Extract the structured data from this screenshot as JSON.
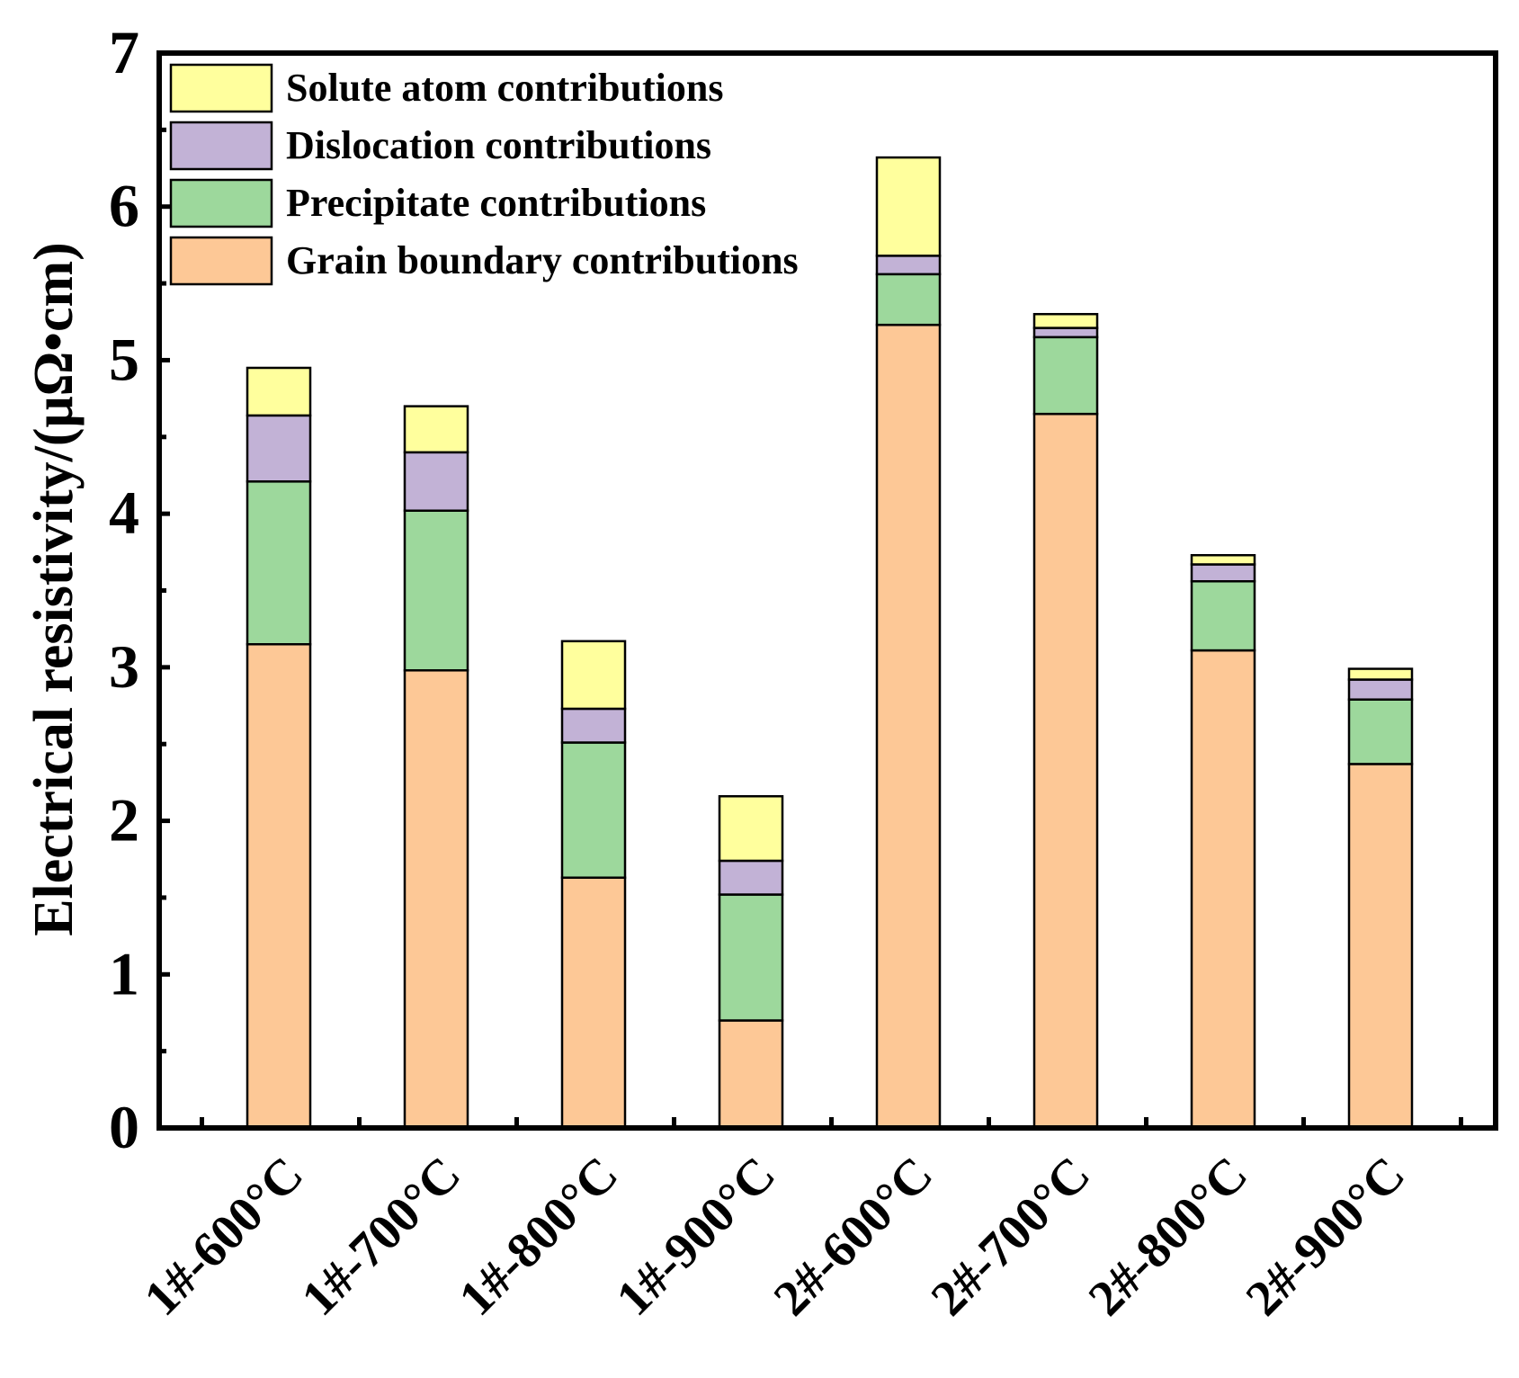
{
  "chart_data": {
    "type": "bar",
    "stacked": true,
    "title": "",
    "xlabel": "",
    "ylabel": "Electrical resistivity/(μΩ•cm)",
    "ylim": [
      0,
      7
    ],
    "yticks": [
      0,
      1,
      2,
      3,
      4,
      5,
      6,
      7
    ],
    "grid": false,
    "legend_position": "top-left",
    "categories": [
      "1#-600°C",
      "1#-700°C",
      "1#-800°C",
      "1#-900°C",
      "2#-600°C",
      "2#-700°C",
      "2#-800°C",
      "2#-900°C"
    ],
    "series": [
      {
        "name": "Grain boundary contributions",
        "color": "#FDC896",
        "values": [
          3.15,
          2.98,
          1.63,
          0.7,
          5.23,
          4.65,
          3.11,
          2.37
        ]
      },
      {
        "name": "Precipitate contributions",
        "color": "#9DD89C",
        "values": [
          1.06,
          1.04,
          0.88,
          0.82,
          0.33,
          0.5,
          0.45,
          0.42
        ]
      },
      {
        "name": "Dislocation contributions",
        "color": "#C2B2D6",
        "values": [
          0.43,
          0.38,
          0.22,
          0.22,
          0.12,
          0.06,
          0.11,
          0.13
        ]
      },
      {
        "name": "Solute atom contributions",
        "color": "#FFFF9D",
        "values": [
          0.31,
          0.3,
          0.44,
          0.42,
          0.64,
          0.09,
          0.06,
          0.07
        ]
      }
    ],
    "legend_order": [
      "Solute atom contributions",
      "Dislocation contributions",
      "Precipitate contributions",
      "Grain boundary contributions"
    ]
  }
}
